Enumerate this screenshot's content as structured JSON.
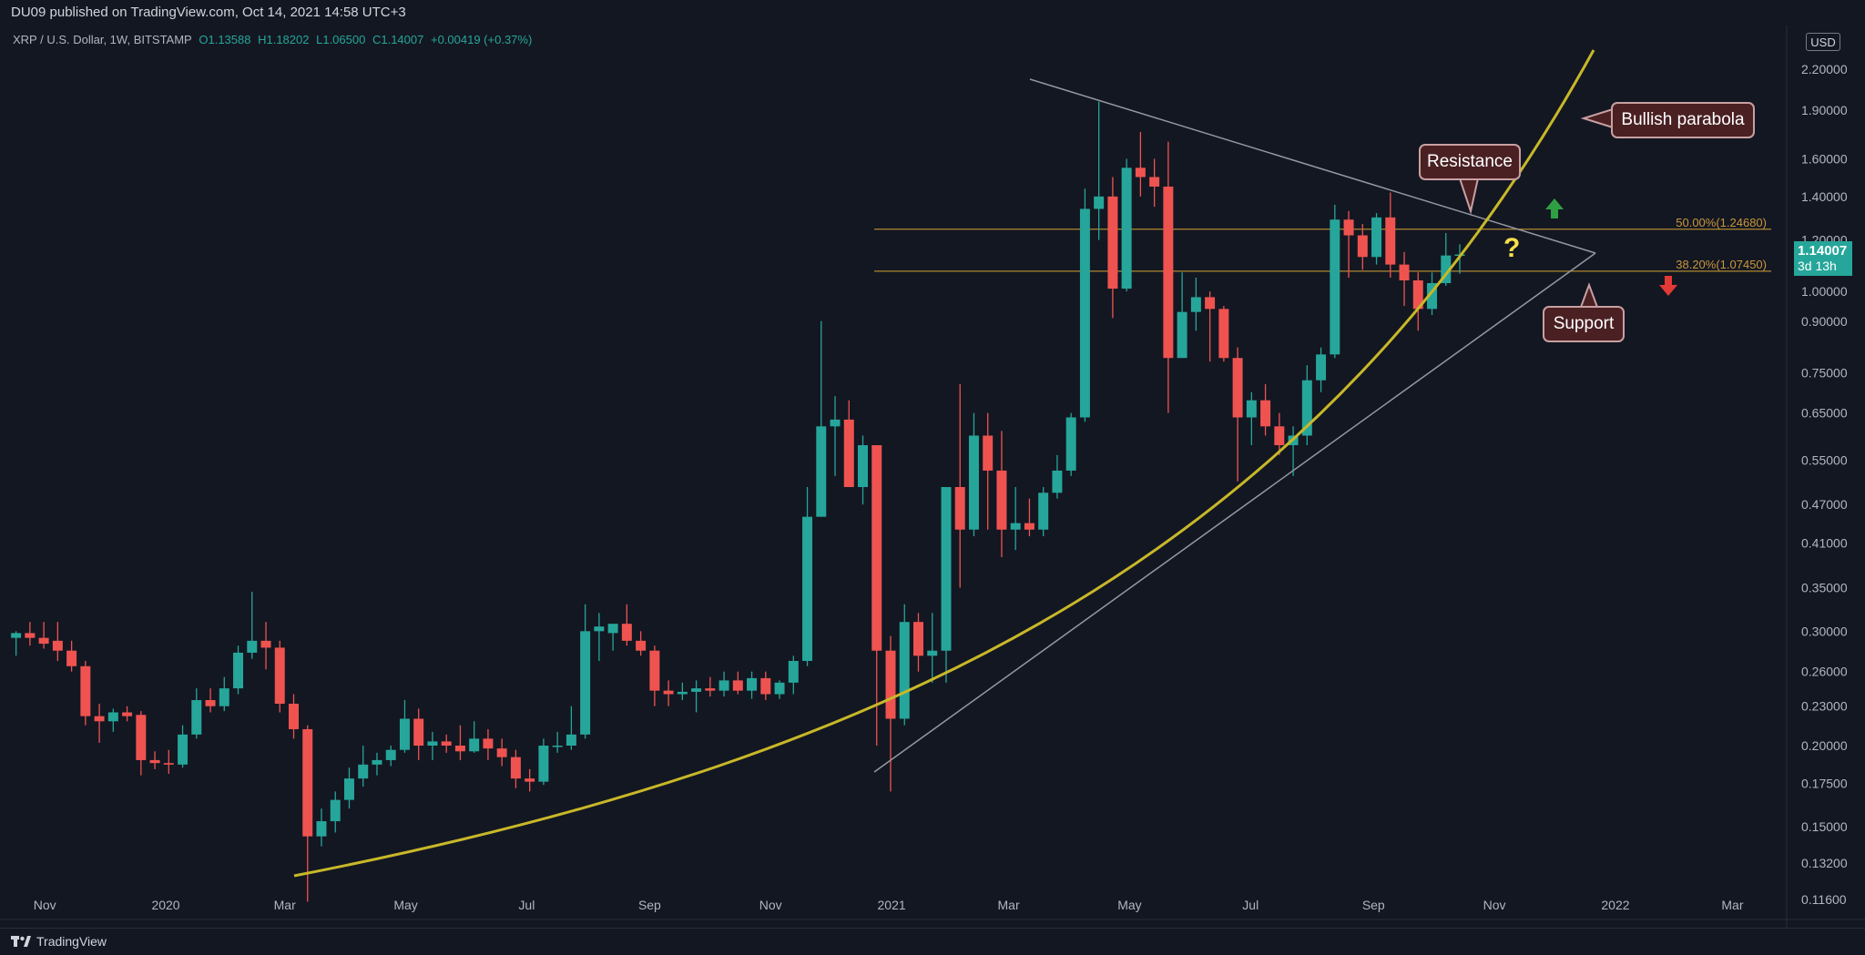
{
  "header": {
    "published": "DU09 published on TradingView.com, Oct 14, 2021 14:58 UTC+3",
    "symbol": "XRP / U.S. Dollar, 1W, BITSTAMP",
    "open": "O1.13588",
    "high": "H1.18202",
    "low": "L1.06500",
    "close": "C1.14007",
    "change": "+0.00419 (+0.37%)"
  },
  "footer": {
    "brand": "TradingView"
  },
  "currency_label": "USD",
  "price_badge": {
    "price": "1.14007",
    "countdown": "3d 13h"
  },
  "annotations": {
    "resistance": "Resistance",
    "support": "Support",
    "parabola": "Bullish parabola",
    "question": "?"
  },
  "colors": {
    "background": "#131722",
    "bull": "#26a69a",
    "bear": "#ef5350",
    "fib": "#b08830",
    "parabola": "#c8b828",
    "trendline": "#9598a1",
    "callout_fill": "#4a2022"
  },
  "chart_data": {
    "type": "candlestick",
    "y_scale": "log",
    "ylim": [
      0.108,
      2.55
    ],
    "x_range": [
      "2019-10-14",
      "2022-03-21"
    ],
    "grid": false,
    "y_ticks": [
      "2.20000",
      "1.90000",
      "1.60000",
      "1.40000",
      "1.20000",
      "1.00000",
      "0.90000",
      "0.75000",
      "0.65000",
      "0.55000",
      "0.47000",
      "0.41000",
      "0.35000",
      "0.30000",
      "0.26000",
      "0.23000",
      "0.20000",
      "0.17500",
      "0.15000",
      "0.13200",
      "0.11600"
    ],
    "x_ticks": [
      {
        "date": "2019-11-01",
        "label": "Nov"
      },
      {
        "date": "2020-01-01",
        "label": "2020"
      },
      {
        "date": "2020-03-01",
        "label": "Mar"
      },
      {
        "date": "2020-05-01",
        "label": "May"
      },
      {
        "date": "2020-07-01",
        "label": "Jul"
      },
      {
        "date": "2020-09-01",
        "label": "Sep"
      },
      {
        "date": "2020-11-01",
        "label": "Nov"
      },
      {
        "date": "2021-01-01",
        "label": "2021"
      },
      {
        "date": "2021-03-01",
        "label": "Mar"
      },
      {
        "date": "2021-05-01",
        "label": "May"
      },
      {
        "date": "2021-07-01",
        "label": "Jul"
      },
      {
        "date": "2021-09-01",
        "label": "Sep"
      },
      {
        "date": "2021-11-01",
        "label": "Nov"
      },
      {
        "date": "2022-01-01",
        "label": "2022"
      },
      {
        "date": "2022-03-01",
        "label": "Mar"
      }
    ],
    "fib_levels": [
      {
        "label": "50.00%(1.24680)",
        "price": 1.2468
      },
      {
        "label": "38.20%(1.07450)",
        "price": 1.0745
      }
    ],
    "candles": [
      {
        "date": "2019-10-14",
        "o": 0.293,
        "h": 0.3,
        "l": 0.275,
        "c": 0.298
      },
      {
        "date": "2019-10-21",
        "o": 0.298,
        "h": 0.31,
        "l": 0.285,
        "c": 0.293
      },
      {
        "date": "2019-10-28",
        "o": 0.293,
        "h": 0.31,
        "l": 0.282,
        "c": 0.287
      },
      {
        "date": "2019-11-04",
        "o": 0.29,
        "h": 0.31,
        "l": 0.27,
        "c": 0.28
      },
      {
        "date": "2019-11-11",
        "o": 0.28,
        "h": 0.29,
        "l": 0.26,
        "c": 0.265
      },
      {
        "date": "2019-11-18",
        "o": 0.265,
        "h": 0.27,
        "l": 0.215,
        "c": 0.222
      },
      {
        "date": "2019-11-25",
        "o": 0.222,
        "h": 0.232,
        "l": 0.202,
        "c": 0.218
      },
      {
        "date": "2019-12-02",
        "o": 0.218,
        "h": 0.228,
        "l": 0.21,
        "c": 0.225
      },
      {
        "date": "2019-12-09",
        "o": 0.225,
        "h": 0.23,
        "l": 0.218,
        "c": 0.222
      },
      {
        "date": "2019-12-16",
        "o": 0.223,
        "h": 0.226,
        "l": 0.18,
        "c": 0.19
      },
      {
        "date": "2019-12-23",
        "o": 0.19,
        "h": 0.196,
        "l": 0.184,
        "c": 0.188
      },
      {
        "date": "2019-12-30",
        "o": 0.188,
        "h": 0.197,
        "l": 0.181,
        "c": 0.187
      },
      {
        "date": "2020-01-06",
        "o": 0.187,
        "h": 0.215,
        "l": 0.185,
        "c": 0.208
      },
      {
        "date": "2020-01-13",
        "o": 0.208,
        "h": 0.245,
        "l": 0.205,
        "c": 0.235
      },
      {
        "date": "2020-01-20",
        "o": 0.235,
        "h": 0.245,
        "l": 0.225,
        "c": 0.23
      },
      {
        "date": "2020-01-27",
        "o": 0.23,
        "h": 0.255,
        "l": 0.226,
        "c": 0.245
      },
      {
        "date": "2020-02-03",
        "o": 0.245,
        "h": 0.285,
        "l": 0.24,
        "c": 0.278
      },
      {
        "date": "2020-02-10",
        "o": 0.278,
        "h": 0.345,
        "l": 0.272,
        "c": 0.29
      },
      {
        "date": "2020-02-17",
        "o": 0.29,
        "h": 0.31,
        "l": 0.262,
        "c": 0.283
      },
      {
        "date": "2020-02-24",
        "o": 0.283,
        "h": 0.29,
        "l": 0.225,
        "c": 0.232
      },
      {
        "date": "2020-03-02",
        "o": 0.232,
        "h": 0.24,
        "l": 0.205,
        "c": 0.212
      },
      {
        "date": "2020-03-09",
        "o": 0.212,
        "h": 0.215,
        "l": 0.115,
        "c": 0.145
      },
      {
        "date": "2020-03-16",
        "o": 0.145,
        "h": 0.16,
        "l": 0.14,
        "c": 0.153
      },
      {
        "date": "2020-03-23",
        "o": 0.153,
        "h": 0.17,
        "l": 0.147,
        "c": 0.165
      },
      {
        "date": "2020-03-30",
        "o": 0.165,
        "h": 0.185,
        "l": 0.16,
        "c": 0.178
      },
      {
        "date": "2020-04-06",
        "o": 0.178,
        "h": 0.2,
        "l": 0.173,
        "c": 0.187
      },
      {
        "date": "2020-04-13",
        "o": 0.187,
        "h": 0.195,
        "l": 0.18,
        "c": 0.19
      },
      {
        "date": "2020-04-20",
        "o": 0.19,
        "h": 0.2,
        "l": 0.186,
        "c": 0.197
      },
      {
        "date": "2020-04-27",
        "o": 0.197,
        "h": 0.235,
        "l": 0.195,
        "c": 0.22
      },
      {
        "date": "2020-05-04",
        "o": 0.22,
        "h": 0.228,
        "l": 0.19,
        "c": 0.2
      },
      {
        "date": "2020-05-11",
        "o": 0.2,
        "h": 0.21,
        "l": 0.19,
        "c": 0.203
      },
      {
        "date": "2020-05-18",
        "o": 0.203,
        "h": 0.208,
        "l": 0.195,
        "c": 0.2
      },
      {
        "date": "2020-05-25",
        "o": 0.2,
        "h": 0.215,
        "l": 0.19,
        "c": 0.196
      },
      {
        "date": "2020-06-01",
        "o": 0.196,
        "h": 0.218,
        "l": 0.195,
        "c": 0.205
      },
      {
        "date": "2020-06-08",
        "o": 0.205,
        "h": 0.212,
        "l": 0.19,
        "c": 0.198
      },
      {
        "date": "2020-06-15",
        "o": 0.198,
        "h": 0.205,
        "l": 0.186,
        "c": 0.192
      },
      {
        "date": "2020-06-22",
        "o": 0.192,
        "h": 0.197,
        "l": 0.172,
        "c": 0.178
      },
      {
        "date": "2020-06-29",
        "o": 0.178,
        "h": 0.184,
        "l": 0.17,
        "c": 0.176
      },
      {
        "date": "2020-07-06",
        "o": 0.176,
        "h": 0.205,
        "l": 0.174,
        "c": 0.2
      },
      {
        "date": "2020-07-13",
        "o": 0.2,
        "h": 0.21,
        "l": 0.195,
        "c": 0.2
      },
      {
        "date": "2020-07-20",
        "o": 0.2,
        "h": 0.23,
        "l": 0.197,
        "c": 0.208
      },
      {
        "date": "2020-07-27",
        "o": 0.208,
        "h": 0.33,
        "l": 0.205,
        "c": 0.3
      },
      {
        "date": "2020-08-03",
        "o": 0.3,
        "h": 0.32,
        "l": 0.27,
        "c": 0.305
      },
      {
        "date": "2020-08-10",
        "o": 0.298,
        "h": 0.305,
        "l": 0.28,
        "c": 0.308
      },
      {
        "date": "2020-08-17",
        "o": 0.308,
        "h": 0.33,
        "l": 0.285,
        "c": 0.29
      },
      {
        "date": "2020-08-24",
        "o": 0.29,
        "h": 0.3,
        "l": 0.275,
        "c": 0.28
      },
      {
        "date": "2020-08-31",
        "o": 0.28,
        "h": 0.285,
        "l": 0.23,
        "c": 0.243
      },
      {
        "date": "2020-09-07",
        "o": 0.243,
        "h": 0.252,
        "l": 0.23,
        "c": 0.24
      },
      {
        "date": "2020-09-14",
        "o": 0.24,
        "h": 0.25,
        "l": 0.235,
        "c": 0.242
      },
      {
        "date": "2020-09-21",
        "o": 0.242,
        "h": 0.252,
        "l": 0.225,
        "c": 0.245
      },
      {
        "date": "2020-09-28",
        "o": 0.245,
        "h": 0.255,
        "l": 0.238,
        "c": 0.243
      },
      {
        "date": "2020-10-05",
        "o": 0.243,
        "h": 0.26,
        "l": 0.238,
        "c": 0.252
      },
      {
        "date": "2020-10-12",
        "o": 0.252,
        "h": 0.26,
        "l": 0.24,
        "c": 0.243
      },
      {
        "date": "2020-10-19",
        "o": 0.243,
        "h": 0.26,
        "l": 0.236,
        "c": 0.254
      },
      {
        "date": "2020-10-26",
        "o": 0.254,
        "h": 0.26,
        "l": 0.235,
        "c": 0.24
      },
      {
        "date": "2020-11-02",
        "o": 0.24,
        "h": 0.252,
        "l": 0.236,
        "c": 0.25
      },
      {
        "date": "2020-11-09",
        "o": 0.25,
        "h": 0.275,
        "l": 0.24,
        "c": 0.27
      },
      {
        "date": "2020-11-16",
        "o": 0.27,
        "h": 0.5,
        "l": 0.265,
        "c": 0.45
      },
      {
        "date": "2020-11-23",
        "o": 0.45,
        "h": 0.9,
        "l": 0.45,
        "c": 0.62
      },
      {
        "date": "2020-11-30",
        "o": 0.62,
        "h": 0.69,
        "l": 0.52,
        "c": 0.635
      },
      {
        "date": "2020-12-07",
        "o": 0.635,
        "h": 0.68,
        "l": 0.5,
        "c": 0.5
      },
      {
        "date": "2020-12-14",
        "o": 0.5,
        "h": 0.6,
        "l": 0.47,
        "c": 0.58
      },
      {
        "date": "2020-12-21",
        "o": 0.58,
        "h": 0.58,
        "l": 0.2,
        "c": 0.28
      },
      {
        "date": "2020-12-28",
        "o": 0.28,
        "h": 0.295,
        "l": 0.17,
        "c": 0.22
      },
      {
        "date": "2021-01-04",
        "o": 0.22,
        "h": 0.33,
        "l": 0.215,
        "c": 0.31
      },
      {
        "date": "2021-01-11",
        "o": 0.31,
        "h": 0.32,
        "l": 0.26,
        "c": 0.275
      },
      {
        "date": "2021-01-18",
        "o": 0.275,
        "h": 0.32,
        "l": 0.25,
        "c": 0.28
      },
      {
        "date": "2021-01-25",
        "o": 0.28,
        "h": 0.5,
        "l": 0.25,
        "c": 0.5
      },
      {
        "date": "2021-02-01",
        "o": 0.5,
        "h": 0.72,
        "l": 0.35,
        "c": 0.43
      },
      {
        "date": "2021-02-08",
        "o": 0.43,
        "h": 0.65,
        "l": 0.42,
        "c": 0.6
      },
      {
        "date": "2021-02-15",
        "o": 0.6,
        "h": 0.65,
        "l": 0.43,
        "c": 0.53
      },
      {
        "date": "2021-02-22",
        "o": 0.53,
        "h": 0.61,
        "l": 0.39,
        "c": 0.43
      },
      {
        "date": "2021-03-01",
        "o": 0.43,
        "h": 0.5,
        "l": 0.4,
        "c": 0.44
      },
      {
        "date": "2021-03-08",
        "o": 0.44,
        "h": 0.48,
        "l": 0.42,
        "c": 0.43
      },
      {
        "date": "2021-03-15",
        "o": 0.43,
        "h": 0.5,
        "l": 0.42,
        "c": 0.49
      },
      {
        "date": "2021-03-22",
        "o": 0.49,
        "h": 0.56,
        "l": 0.48,
        "c": 0.53
      },
      {
        "date": "2021-03-29",
        "o": 0.53,
        "h": 0.65,
        "l": 0.52,
        "c": 0.64
      },
      {
        "date": "2021-04-05",
        "o": 0.64,
        "h": 1.44,
        "l": 0.63,
        "c": 1.34
      },
      {
        "date": "2021-04-12",
        "o": 1.34,
        "h": 1.96,
        "l": 1.2,
        "c": 1.4
      },
      {
        "date": "2021-04-19",
        "o": 1.4,
        "h": 1.5,
        "l": 0.91,
        "c": 1.01
      },
      {
        "date": "2021-04-26",
        "o": 1.01,
        "h": 1.6,
        "l": 1.0,
        "c": 1.55
      },
      {
        "date": "2021-05-03",
        "o": 1.55,
        "h": 1.76,
        "l": 1.4,
        "c": 1.5
      },
      {
        "date": "2021-05-10",
        "o": 1.5,
        "h": 1.6,
        "l": 1.35,
        "c": 1.45
      },
      {
        "date": "2021-05-17",
        "o": 1.45,
        "h": 1.7,
        "l": 0.65,
        "c": 0.79
      },
      {
        "date": "2021-05-24",
        "o": 0.79,
        "h": 1.07,
        "l": 0.79,
        "c": 0.93
      },
      {
        "date": "2021-05-31",
        "o": 0.93,
        "h": 1.05,
        "l": 0.87,
        "c": 0.98
      },
      {
        "date": "2021-06-07",
        "o": 0.98,
        "h": 1.0,
        "l": 0.78,
        "c": 0.94
      },
      {
        "date": "2021-06-14",
        "o": 0.94,
        "h": 0.95,
        "l": 0.78,
        "c": 0.79
      },
      {
        "date": "2021-06-21",
        "o": 0.79,
        "h": 0.82,
        "l": 0.51,
        "c": 0.64
      },
      {
        "date": "2021-06-28",
        "o": 0.64,
        "h": 0.7,
        "l": 0.58,
        "c": 0.68
      },
      {
        "date": "2021-07-05",
        "o": 0.68,
        "h": 0.72,
        "l": 0.6,
        "c": 0.62
      },
      {
        "date": "2021-07-12",
        "o": 0.62,
        "h": 0.65,
        "l": 0.56,
        "c": 0.58
      },
      {
        "date": "2021-07-19",
        "o": 0.58,
        "h": 0.62,
        "l": 0.52,
        "c": 0.6
      },
      {
        "date": "2021-07-26",
        "o": 0.6,
        "h": 0.77,
        "l": 0.58,
        "c": 0.73
      },
      {
        "date": "2021-08-02",
        "o": 0.73,
        "h": 0.82,
        "l": 0.7,
        "c": 0.8
      },
      {
        "date": "2021-08-09",
        "o": 0.8,
        "h": 1.36,
        "l": 0.79,
        "c": 1.29
      },
      {
        "date": "2021-08-16",
        "o": 1.29,
        "h": 1.33,
        "l": 1.05,
        "c": 1.22
      },
      {
        "date": "2021-08-23",
        "o": 1.22,
        "h": 1.27,
        "l": 1.08,
        "c": 1.13
      },
      {
        "date": "2021-08-30",
        "o": 1.13,
        "h": 1.32,
        "l": 1.1,
        "c": 1.3
      },
      {
        "date": "2021-09-06",
        "o": 1.3,
        "h": 1.42,
        "l": 1.05,
        "c": 1.1
      },
      {
        "date": "2021-09-13",
        "o": 1.1,
        "h": 1.15,
        "l": 0.95,
        "c": 1.04
      },
      {
        "date": "2021-09-20",
        "o": 1.04,
        "h": 1.07,
        "l": 0.87,
        "c": 0.94
      },
      {
        "date": "2021-09-27",
        "o": 0.94,
        "h": 1.07,
        "l": 0.92,
        "c": 1.03
      },
      {
        "date": "2021-10-04",
        "o": 1.03,
        "h": 1.23,
        "l": 1.02,
        "c": 1.136
      },
      {
        "date": "2021-10-11",
        "o": 1.13588,
        "h": 1.18202,
        "l": 1.065,
        "c": 1.14007
      }
    ]
  }
}
